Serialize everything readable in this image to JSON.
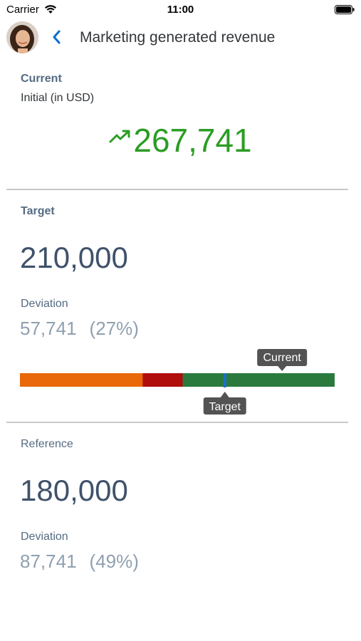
{
  "status_bar": {
    "carrier": "Carrier",
    "time": "11:00",
    "wifi_icon": "wifi-icon",
    "battery_icon": "battery-icon"
  },
  "nav": {
    "title": "Marketing generated revenue",
    "back_icon": "chevron-left-icon",
    "avatar": "user-avatar"
  },
  "current": {
    "label": "Current",
    "sub_label": "Initial (in USD)",
    "value": "267,741",
    "trend_icon": "trend-up-icon",
    "color": "#2b9d24"
  },
  "target": {
    "label": "Target",
    "value": "210,000",
    "deviation_label": "Deviation",
    "deviation_value": "57,741",
    "deviation_percent": "(27%)"
  },
  "reference": {
    "label": "Reference",
    "value": "180,000",
    "deviation_label": "Deviation",
    "deviation_value": "87,741",
    "deviation_percent": "(49%)"
  },
  "chart_data": {
    "type": "bar",
    "segments": [
      {
        "color": "#e8680a",
        "fraction": 0.39
      },
      {
        "color": "#b00d0d",
        "fraction": 0.127
      },
      {
        "color": "#2a7a3e",
        "fraction": 0.483
      }
    ],
    "target_marker_fraction": 0.651,
    "target_marker_color": "#1b6fd1",
    "current_marker_fraction": 0.833,
    "tooltips": {
      "current": "Current",
      "target": "Target"
    }
  }
}
